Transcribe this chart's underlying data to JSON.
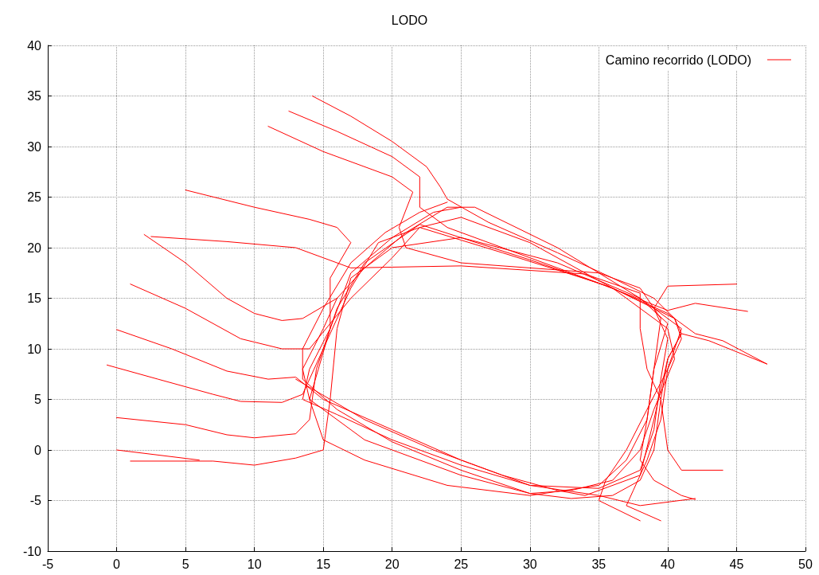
{
  "chart_data": {
    "type": "line",
    "title": "LODO",
    "xlim": [
      -5,
      50
    ],
    "ylim": [
      -10,
      40
    ],
    "xticks": [
      -5,
      0,
      5,
      10,
      15,
      20,
      25,
      30,
      35,
      40,
      45,
      50
    ],
    "yticks": [
      -10,
      -5,
      0,
      5,
      10,
      15,
      20,
      25,
      30,
      35,
      40
    ],
    "grid": true,
    "legend": "top right",
    "marker": "none",
    "line_style": "solid",
    "series": [
      {
        "name": "Camino recorrido (LODO)",
        "color": "#ff0000",
        "x": [
          14.2,
          17,
          20,
          22.5,
          23.5,
          24,
          27,
          32,
          36,
          39,
          40.5,
          41,
          40,
          39.5,
          39,
          38,
          36,
          33,
          30,
          25,
          20,
          16,
          13.5,
          13.5,
          15,
          17,
          19.5,
          22,
          24
        ],
        "values": [
          35,
          33,
          30.5,
          28,
          26,
          24.8,
          22.5,
          19.5,
          17,
          15,
          13,
          11.5,
          9,
          5,
          0,
          -3,
          -4.5,
          -4.8,
          -4.3,
          -2,
          0.8,
          4,
          7,
          10,
          14,
          18.5,
          21.5,
          23.5,
          24.5
        ]
      },
      {
        "color": "#ff0000",
        "x": [
          12.5,
          16,
          20,
          22,
          22,
          24,
          30,
          36,
          40,
          42,
          44,
          47.2
        ],
        "values": [
          33.5,
          31.5,
          29,
          27,
          24,
          22,
          19,
          16,
          13.5,
          11.5,
          10.8,
          8.5
        ]
      },
      {
        "color": "#ff0000",
        "x": [
          11,
          15,
          20,
          21.5,
          20.5,
          21,
          25,
          35,
          38,
          39.5,
          39,
          38.5,
          37,
          35,
          30,
          24,
          18,
          15,
          14,
          15.5,
          17,
          20,
          23,
          25
        ],
        "values": [
          32,
          29.5,
          27,
          25.5,
          22,
          20,
          18.5,
          17.5,
          16,
          13,
          8,
          3,
          -1,
          -3.5,
          -4.5,
          -3.5,
          -1,
          1,
          5,
          12,
          17.5,
          21,
          23.5,
          24
        ]
      },
      {
        "color": "#ff0000",
        "x": [
          5,
          10,
          14,
          16,
          17,
          15.5,
          15.5,
          14,
          13.5,
          16,
          20,
          25,
          30,
          35,
          38,
          42
        ],
        "values": [
          25.7,
          24,
          22.8,
          22,
          20.5,
          17,
          12,
          8,
          5,
          3.5,
          1,
          -1.5,
          -3.5,
          -4.5,
          -5.5,
          -4.8
        ]
      },
      {
        "color": "#ff0000",
        "x": [
          2,
          5,
          8,
          10,
          12,
          13.5,
          16,
          18,
          21,
          24,
          26,
          32,
          38,
          40,
          39,
          38.5,
          38,
          39,
          41,
          42
        ],
        "values": [
          21.3,
          18.5,
          15,
          13.5,
          12.8,
          13,
          15,
          18,
          21.5,
          24,
          24,
          20,
          15,
          12.5,
          8,
          3,
          -1,
          -3,
          -4.5,
          -4.9
        ]
      },
      {
        "color": "#ff0000",
        "x": [
          2.5,
          8,
          13,
          15,
          17,
          25,
          34,
          38,
          38,
          38.5,
          39.5,
          40,
          41,
          44
        ],
        "values": [
          21.1,
          20.6,
          20,
          19,
          18,
          18.2,
          17.4,
          15.5,
          12,
          8,
          5,
          0,
          -2,
          -2
        ]
      },
      {
        "color": "#ff0000",
        "x": [
          1,
          5,
          9,
          12,
          14,
          17,
          20,
          22,
          25,
          30,
          36,
          40,
          40.5,
          39,
          38,
          36,
          33,
          30,
          25,
          18,
          14,
          13.5,
          15,
          16
        ],
        "values": [
          16.4,
          14,
          11,
          10,
          10,
          15,
          19,
          22,
          23,
          20.5,
          16,
          12,
          9,
          4,
          0,
          -3,
          -4,
          -4.3,
          -2.5,
          1,
          5,
          8,
          12,
          15
        ]
      },
      {
        "color": "#ff0000",
        "x": [
          0,
          4,
          8,
          11,
          13,
          15,
          20,
          25,
          30,
          35,
          38,
          39,
          39.5,
          40,
          39,
          40,
          45
        ],
        "values": [
          11.9,
          10,
          7.8,
          7,
          7.2,
          5,
          2,
          -1,
          -3.5,
          -3.8,
          -2,
          2,
          7,
          11,
          14,
          16.2,
          16.4
        ]
      },
      {
        "color": "#ff0000",
        "x": [
          -0.7,
          3,
          7,
          9,
          12,
          13.5,
          15,
          17,
          19,
          22,
          28,
          35,
          40,
          42,
          45.8
        ],
        "values": [
          8.4,
          7,
          5.5,
          4.8,
          4.7,
          5.5,
          10,
          16,
          20.5,
          22,
          19.5,
          16.5,
          13.8,
          14.5,
          13.7
        ]
      },
      {
        "color": "#ff0000",
        "x": [
          0,
          5,
          8,
          10,
          13,
          14,
          14.5,
          16,
          18,
          22,
          30,
          36,
          40.5,
          41,
          40,
          39.5,
          38.5,
          37.5,
          37,
          39.5
        ],
        "values": [
          3.2,
          2.5,
          1.5,
          1.2,
          1.6,
          3,
          8,
          14,
          18.5,
          22.3,
          18.8,
          16,
          13,
          11,
          8,
          3,
          -1,
          -4,
          -5.5,
          -7
        ]
      },
      {
        "color": "#ff0000",
        "x": [
          0,
          6
        ],
        "values": [
          0,
          -1
        ]
      },
      {
        "color": "#ff0000",
        "x": [
          1,
          7,
          10,
          13,
          15,
          15.5,
          16,
          17,
          20,
          25,
          32,
          38,
          41,
          40,
          38.5,
          37,
          35.5,
          35,
          38
        ],
        "values": [
          -1.1,
          -1.1,
          -1.5,
          -0.8,
          0,
          5,
          12,
          17,
          20,
          21,
          18.5,
          15,
          12,
          8,
          4,
          0,
          -3,
          -5,
          -7
        ]
      },
      {
        "color": "#ff0000",
        "x": [
          13,
          18,
          23,
          28,
          32,
          34,
          38,
          39,
          40,
          41,
          43,
          47.2
        ],
        "values": [
          7,
          3,
          0,
          -2.5,
          -4,
          -4.5,
          -2.5,
          3,
          9,
          11.5,
          10.8,
          8.5
        ]
      }
    ]
  }
}
